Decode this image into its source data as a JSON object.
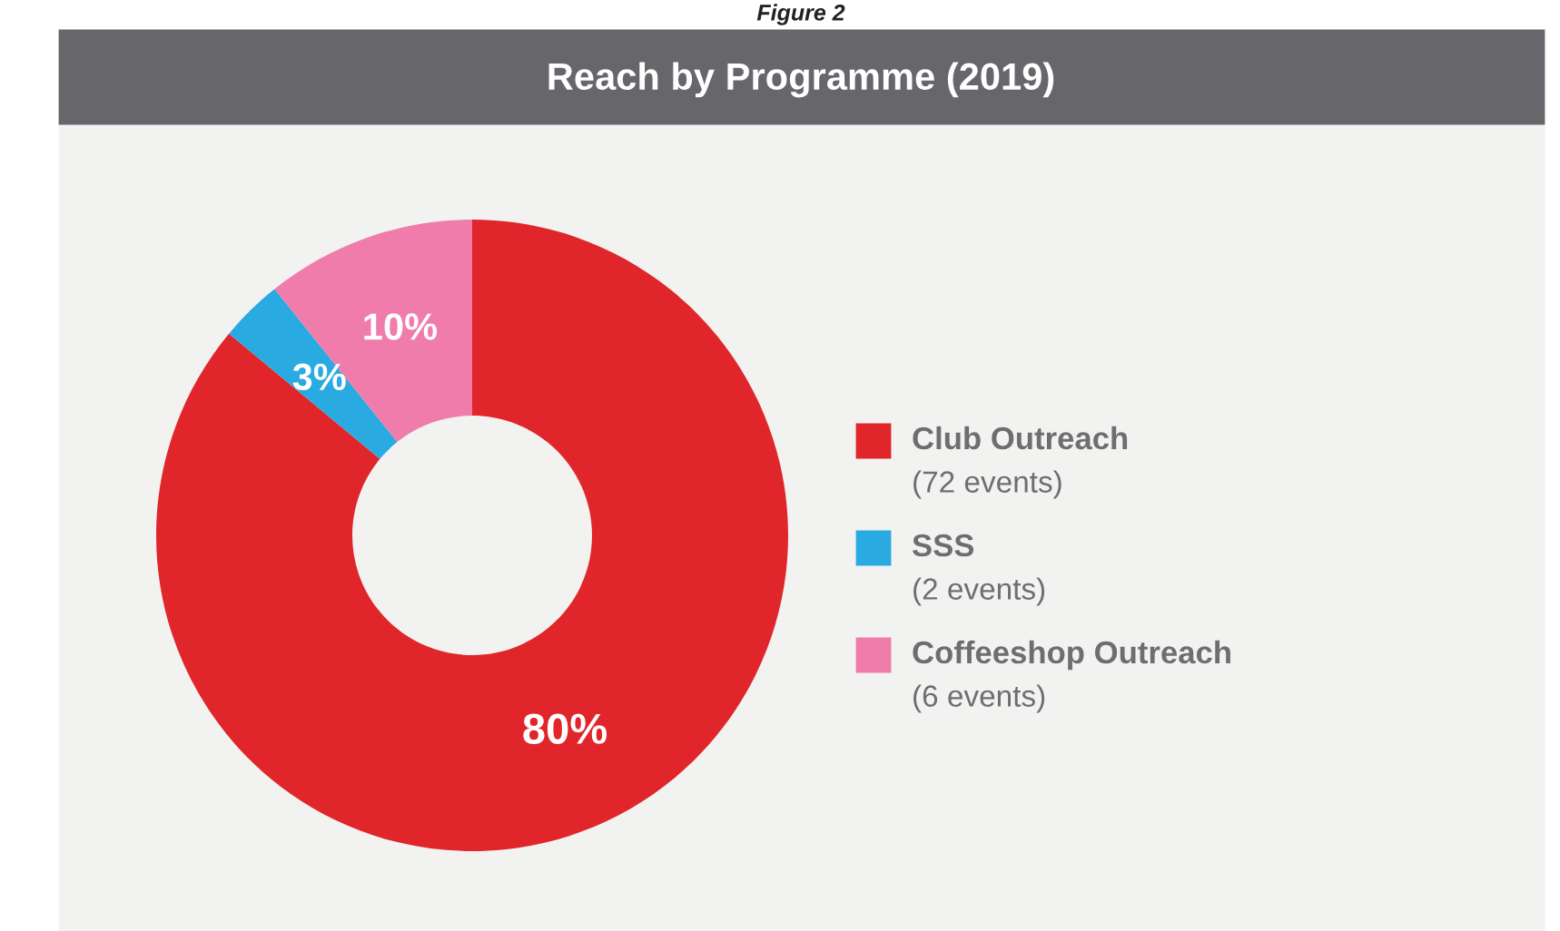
{
  "chart_data": {
    "type": "donut",
    "title": "Reach by Programme (2019)",
    "annotations": [
      "Figure 2"
    ],
    "categories": [
      "Club Outreach\n(72 events)",
      "SSS\n(2 events)",
      "Coffeeshop Outreach\n(6 events)"
    ],
    "values": [
      80,
      3,
      10
    ],
    "colors": [
      "#e0262b",
      "#29abe2",
      "#f07cab"
    ],
    "value_labels": [
      "80%",
      "3%",
      "10%"
    ],
    "legend": "right"
  }
}
